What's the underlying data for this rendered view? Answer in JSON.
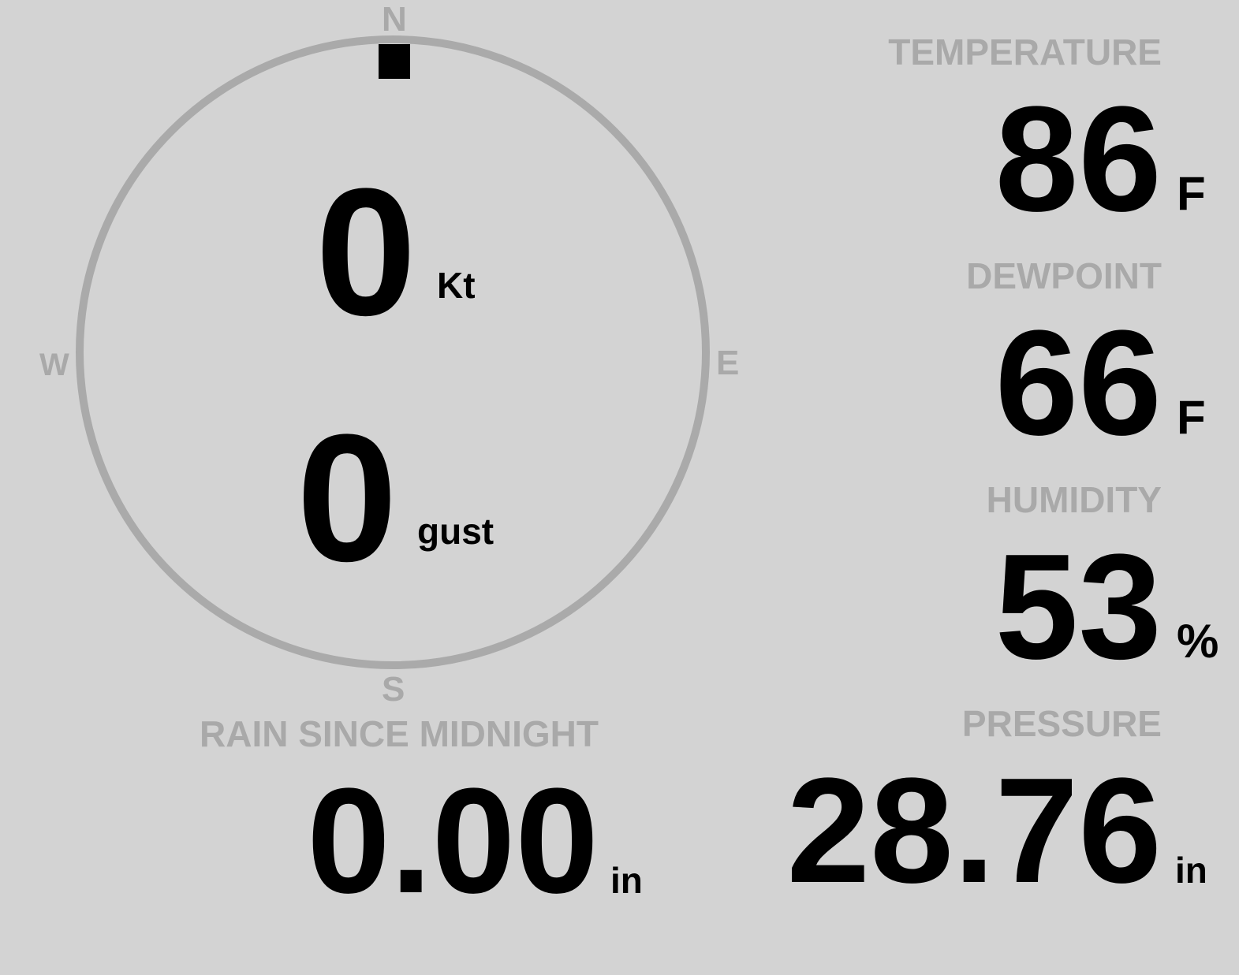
{
  "compass": {
    "north": "N",
    "south": "S",
    "east": "E",
    "west": "W",
    "wind_direction_deg": 0,
    "ring_color": "#aaaaaa",
    "marker_color": "#000000"
  },
  "wind": {
    "speed": "0",
    "speed_unit": "Kt",
    "gust": "0",
    "gust_unit": "gust"
  },
  "temperature": {
    "label": "TEMPERATURE",
    "value": "86",
    "unit": "F"
  },
  "dewpoint": {
    "label": "DEWPOINT",
    "value": "66",
    "unit": "F"
  },
  "humidity": {
    "label": "HUMIDITY",
    "value": "53",
    "unit": "%"
  },
  "pressure": {
    "label": "PRESSURE",
    "value": "28.76",
    "unit": "in"
  },
  "rain": {
    "label": "RAIN SINCE MIDNIGHT",
    "value": "0.00",
    "unit": "in"
  },
  "colors": {
    "background": "#d3d3d3",
    "label": "#a9a9a9",
    "value": "#000000"
  }
}
